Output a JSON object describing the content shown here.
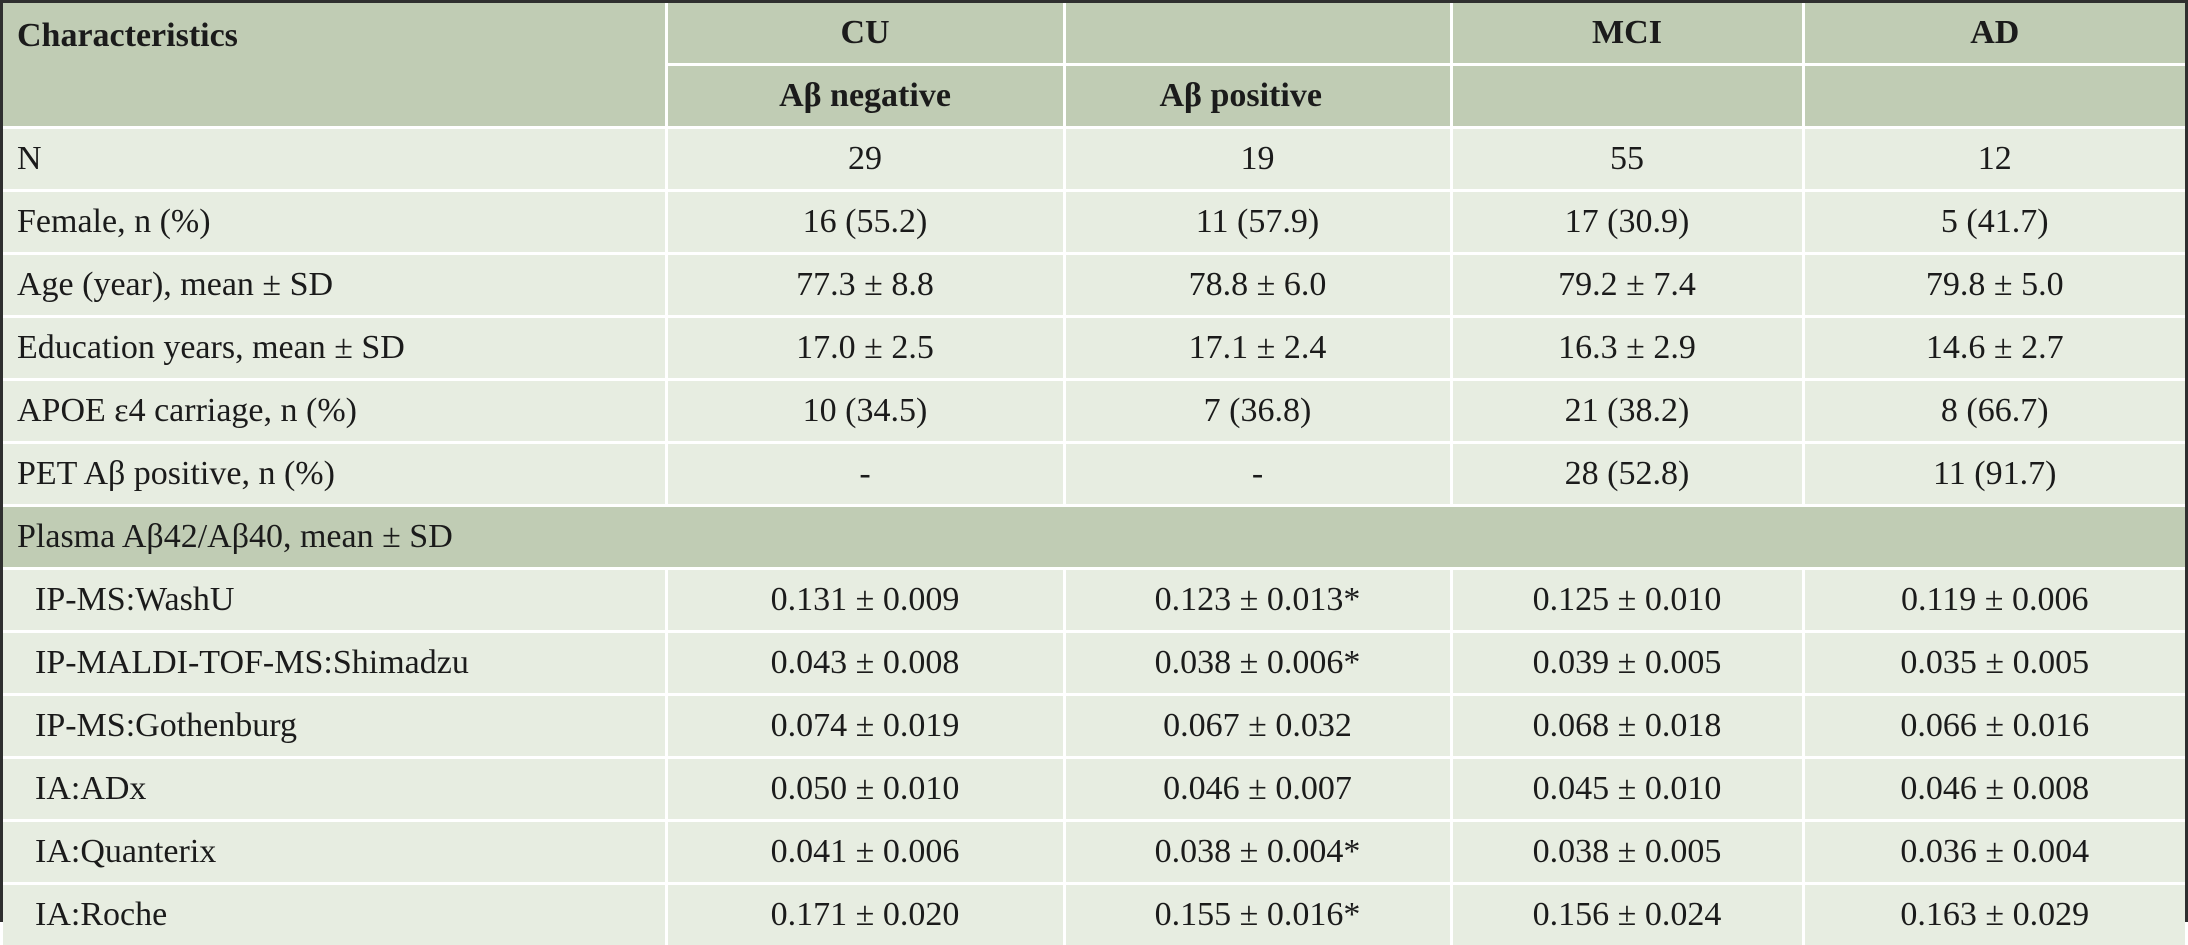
{
  "header": {
    "characteristics": "Characteristics",
    "cu": "CU",
    "mci": "MCI",
    "ad": "AD",
    "ab_negative": "Aβ negative",
    "ab_positive": "Aβ positive"
  },
  "rows": [
    {
      "label": "N",
      "values": [
        "29",
        "19",
        "55",
        "12"
      ]
    },
    {
      "label": "Female, n (%)",
      "values": [
        "16 (55.2)",
        "11 (57.9)",
        "17 (30.9)",
        "5 (41.7)"
      ]
    },
    {
      "label": "Age (year), mean ± SD",
      "values": [
        "77.3 ± 8.8",
        "78.8 ± 6.0",
        "79.2 ± 7.4",
        "79.8 ± 5.0"
      ]
    },
    {
      "label": "Education years, mean ± SD",
      "values": [
        "17.0 ± 2.5",
        "17.1 ± 2.4",
        "16.3 ± 2.9",
        "14.6 ± 2.7"
      ]
    },
    {
      "label": "APOE ε4 carriage, n (%)",
      "values": [
        "10 (34.5)",
        "7 (36.8)",
        "21 (38.2)",
        "8 (66.7)"
      ]
    },
    {
      "label": "PET Aβ positive, n (%)",
      "values": [
        "-",
        "-",
        "28 (52.8)",
        "11 (91.7)"
      ]
    }
  ],
  "section": {
    "label": "Plasma Aβ42/Aβ40, mean ± SD"
  },
  "plasma_rows": [
    {
      "label": "IP-MS:WashU",
      "values": [
        "0.131 ± 0.009",
        "0.123 ± 0.013*",
        "0.125 ± 0.010",
        "0.119 ± 0.006"
      ]
    },
    {
      "label": "IP-MALDI-TOF-MS:Shimadzu",
      "values": [
        "0.043 ± 0.008",
        "0.038 ± 0.006*",
        "0.039 ± 0.005",
        "0.035 ± 0.005"
      ]
    },
    {
      "label": "IP-MS:Gothenburg",
      "values": [
        "0.074 ± 0.019",
        "0.067 ± 0.032",
        "0.068 ± 0.018",
        "0.066 ± 0.016"
      ]
    },
    {
      "label": "IA:ADx",
      "values": [
        "0.050 ± 0.010",
        "0.046 ± 0.007",
        "0.045 ± 0.010",
        "0.046 ± 0.008"
      ]
    },
    {
      "label": "IA:Quanterix",
      "values": [
        "0.041 ± 0.006",
        "0.038 ± 0.004*",
        "0.038 ± 0.005",
        "0.036 ± 0.004"
      ]
    },
    {
      "label": "IA:Roche",
      "values": [
        "0.171 ± 0.020",
        "0.155 ± 0.016*",
        "0.156 ± 0.024",
        "0.163 ± 0.029"
      ]
    }
  ]
}
